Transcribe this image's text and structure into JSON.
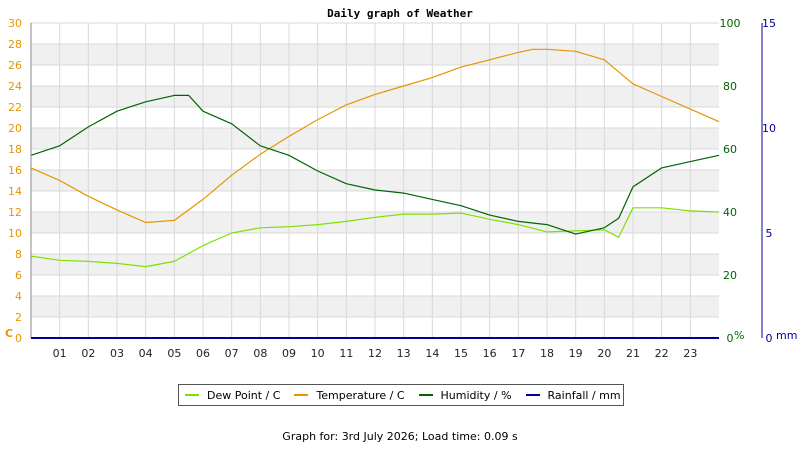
{
  "chart_data": {
    "type": "line",
    "title": "Daily graph of Weather",
    "x_unit": "hour",
    "x_ticks": [
      "01",
      "02",
      "03",
      "04",
      "05",
      "06",
      "07",
      "08",
      "09",
      "10",
      "11",
      "12",
      "13",
      "14",
      "15",
      "16",
      "17",
      "18",
      "19",
      "20",
      "21",
      "22",
      "23"
    ],
    "xlim": [
      0,
      24
    ],
    "axes": {
      "temperature": {
        "unit_label": "C",
        "ylim": [
          0,
          30
        ],
        "ticks": [
          0,
          2,
          4,
          6,
          8,
          10,
          12,
          14,
          16,
          18,
          20,
          22,
          24,
          26,
          28,
          30
        ],
        "color": "#e69500"
      },
      "humidity": {
        "unit_label": "%",
        "ylim": [
          0,
          100
        ],
        "ticks": [
          0,
          20,
          40,
          60,
          80,
          100
        ],
        "color": "#006400"
      },
      "rainfall": {
        "unit_label": "mm",
        "ylim": [
          0,
          15
        ],
        "ticks": [
          0,
          5,
          10,
          15
        ],
        "color": "#000099"
      }
    },
    "grid": true,
    "legend_position": "bottom",
    "series": [
      {
        "name": "Dew Point / C",
        "axis": "temperature",
        "color": "#7fe000",
        "x": [
          0,
          1,
          2,
          3,
          4,
          5,
          6,
          7,
          8,
          9,
          10,
          11,
          12,
          13,
          14,
          15,
          16,
          17,
          18,
          19,
          20,
          20.5,
          21,
          22,
          23,
          24
        ],
        "y": [
          7.8,
          7.4,
          7.3,
          7.1,
          6.8,
          7.3,
          8.8,
          10.0,
          10.5,
          10.6,
          10.8,
          11.1,
          11.5,
          11.8,
          11.8,
          11.9,
          11.3,
          10.8,
          10.1,
          10.2,
          10.3,
          9.6,
          12.4,
          12.4,
          12.1,
          12.0
        ]
      },
      {
        "name": "Temperature / C",
        "axis": "temperature",
        "color": "#e69500",
        "x": [
          0,
          1,
          2,
          3,
          4,
          5,
          6,
          7,
          8,
          9,
          10,
          11,
          12,
          13,
          14,
          15,
          16,
          17,
          17.5,
          18,
          19,
          20,
          21,
          22,
          23,
          24
        ],
        "y": [
          16.2,
          15.0,
          13.5,
          12.2,
          11.0,
          11.2,
          13.2,
          15.5,
          17.5,
          19.2,
          20.8,
          22.2,
          23.2,
          24.0,
          24.8,
          25.8,
          26.5,
          27.2,
          27.5,
          27.5,
          27.3,
          26.5,
          24.2,
          23.0,
          21.8,
          20.6
        ]
      },
      {
        "name": "Humidity / %",
        "axis": "humidity",
        "color": "#006400",
        "x": [
          0,
          1,
          2,
          3,
          4,
          5,
          5.5,
          6,
          7,
          8,
          9,
          10,
          11,
          12,
          13,
          14,
          15,
          16,
          17,
          18,
          19,
          20,
          20.5,
          21,
          22,
          23,
          24
        ],
        "y": [
          58,
          61,
          67,
          72,
          75,
          77,
          77,
          72,
          68,
          61,
          58,
          53,
          49,
          47,
          46,
          44,
          42,
          39,
          37,
          36,
          33,
          35,
          38,
          48,
          54,
          56,
          58
        ]
      },
      {
        "name": "Rainfall / mm",
        "axis": "rainfall",
        "color": "#000099",
        "x": [
          0,
          24
        ],
        "y": [
          0,
          0
        ]
      }
    ]
  },
  "footer": {
    "label": "Graph for:",
    "date": "3rd July 2026",
    "load_label": "Load time:",
    "load_time": "0.09 s"
  }
}
